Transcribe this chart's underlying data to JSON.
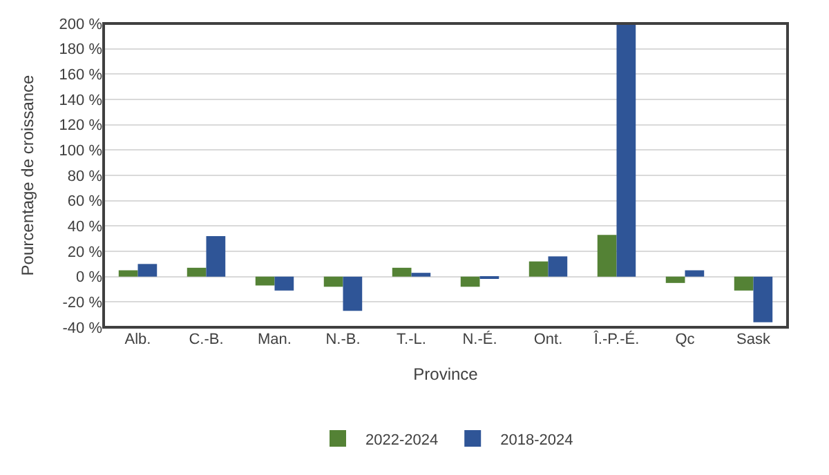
{
  "chart_data": {
    "type": "bar",
    "xlabel": "Province",
    "ylabel": "Pourcentage de croissance",
    "categories": [
      "Alb.",
      "C.-B.",
      "Man.",
      "N.-B.",
      "T.-L.",
      "N.-É.",
      "Ont.",
      "Î.-P.-É.",
      "Qc",
      "Sask"
    ],
    "series": [
      {
        "name": "2022-2024",
        "color": "#548235",
        "values": [
          5,
          7,
          -7,
          -8,
          7,
          -8,
          12,
          33,
          -5,
          -11
        ]
      },
      {
        "name": "2018-2024",
        "color": "#2f5597",
        "values": [
          10,
          32,
          -11,
          -27,
          3,
          -1,
          16,
          200,
          5,
          -36
        ]
      }
    ],
    "ylim": [
      -40,
      200
    ],
    "yticks": [
      {
        "value": -40,
        "label": "-40 %"
      },
      {
        "value": -20,
        "label": "-20 %"
      },
      {
        "value": 0,
        "label": "0 %"
      },
      {
        "value": 20,
        "label": "20 %"
      },
      {
        "value": 40,
        "label": "40 %"
      },
      {
        "value": 60,
        "label": "60 %"
      },
      {
        "value": 80,
        "label": "80 %"
      },
      {
        "value": 100,
        "label": "100 %"
      },
      {
        "value": 120,
        "label": "120 %"
      },
      {
        "value": 140,
        "label": "140 %"
      },
      {
        "value": 160,
        "label": "160 %"
      },
      {
        "value": 180,
        "label": "180 %"
      },
      {
        "value": 200,
        "label": "200 %"
      }
    ],
    "grid": "y",
    "legend": "bottom"
  }
}
